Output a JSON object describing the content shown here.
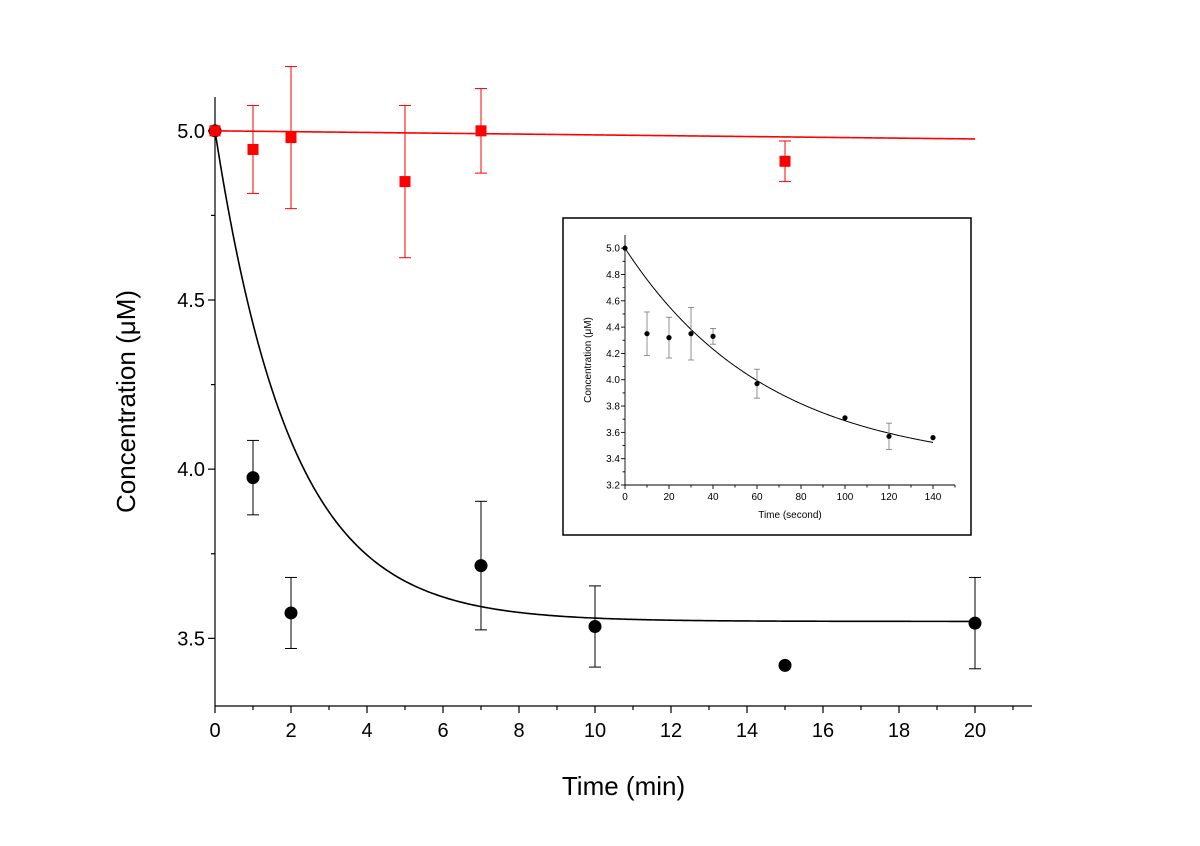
{
  "chart_data": [
    {
      "type": "scatter",
      "title": "",
      "xlabel": "Time (min)",
      "ylabel": "Concentration (μM)",
      "xlim": [
        0,
        21.5
      ],
      "ylim": [
        3.3,
        5.1
      ],
      "xticks": [
        0,
        2,
        4,
        6,
        8,
        10,
        12,
        14,
        16,
        18,
        20
      ],
      "xtick_labels": [
        "0",
        "2",
        "4",
        "6",
        "8",
        "10",
        "12",
        "14",
        "16",
        "18",
        "20"
      ],
      "yticks": [
        3.5,
        4.0,
        4.5,
        5.0
      ],
      "ytick_labels": [
        "3.5",
        "4.0",
        "4.5",
        "5.0"
      ],
      "colors": {
        "black_series": "#000000",
        "red_series": "#ff0000"
      },
      "series": [
        {
          "name": "black",
          "marker": "circle",
          "x": [
            0,
            1,
            2,
            7,
            10,
            15,
            20
          ],
          "y": [
            5.0,
            3.975,
            3.575,
            3.715,
            3.535,
            3.42,
            3.545
          ],
          "err": [
            0,
            0.11,
            0.105,
            0.19,
            0.12,
            0,
            0.135
          ],
          "fit": {
            "model": "exponential_decay",
            "y0": 3.55,
            "A": 1.45,
            "tau": 2.0
          }
        },
        {
          "name": "red",
          "marker": "square",
          "x": [
            0,
            1,
            2,
            5,
            7,
            15
          ],
          "y": [
            5.0,
            4.945,
            4.98,
            4.85,
            5.0,
            4.91
          ],
          "err": [
            0,
            0.13,
            0.21,
            0.225,
            0.125,
            0.06
          ],
          "fit": {
            "model": "linear",
            "intercept": 5.0,
            "slope": -0.0012
          }
        }
      ]
    },
    {
      "type": "scatter",
      "title": "",
      "xlabel": "Time (second)",
      "ylabel": "Concentration (μM)",
      "xlim": [
        0,
        150
      ],
      "ylim": [
        3.2,
        5.1
      ],
      "xticks": [
        0,
        20,
        40,
        60,
        80,
        100,
        120,
        140
      ],
      "xtick_labels": [
        "0",
        "20",
        "40",
        "60",
        "80",
        "100",
        "120",
        "140"
      ],
      "yticks": [
        3.2,
        3.4,
        3.6,
        3.8,
        4.0,
        4.2,
        4.4,
        4.6,
        4.8,
        5.0
      ],
      "ytick_labels": [
        "3.2",
        "3.4",
        "3.6",
        "3.8",
        "4.0",
        "4.2",
        "4.4",
        "4.6",
        "4.8",
        "5.0"
      ],
      "series": [
        {
          "name": "inset",
          "marker": "circle",
          "x": [
            0,
            10,
            20,
            30,
            40,
            60,
            100,
            120,
            140
          ],
          "y": [
            5.0,
            4.35,
            4.32,
            4.35,
            4.33,
            3.97,
            3.71,
            3.57,
            3.56
          ],
          "err": [
            0,
            0.165,
            0.155,
            0.2,
            0.06,
            0.11,
            0,
            0.1,
            0
          ],
          "fit": {
            "model": "exponential_decay",
            "y0": 3.33,
            "A": 1.67,
            "tau": 65
          }
        }
      ]
    }
  ]
}
